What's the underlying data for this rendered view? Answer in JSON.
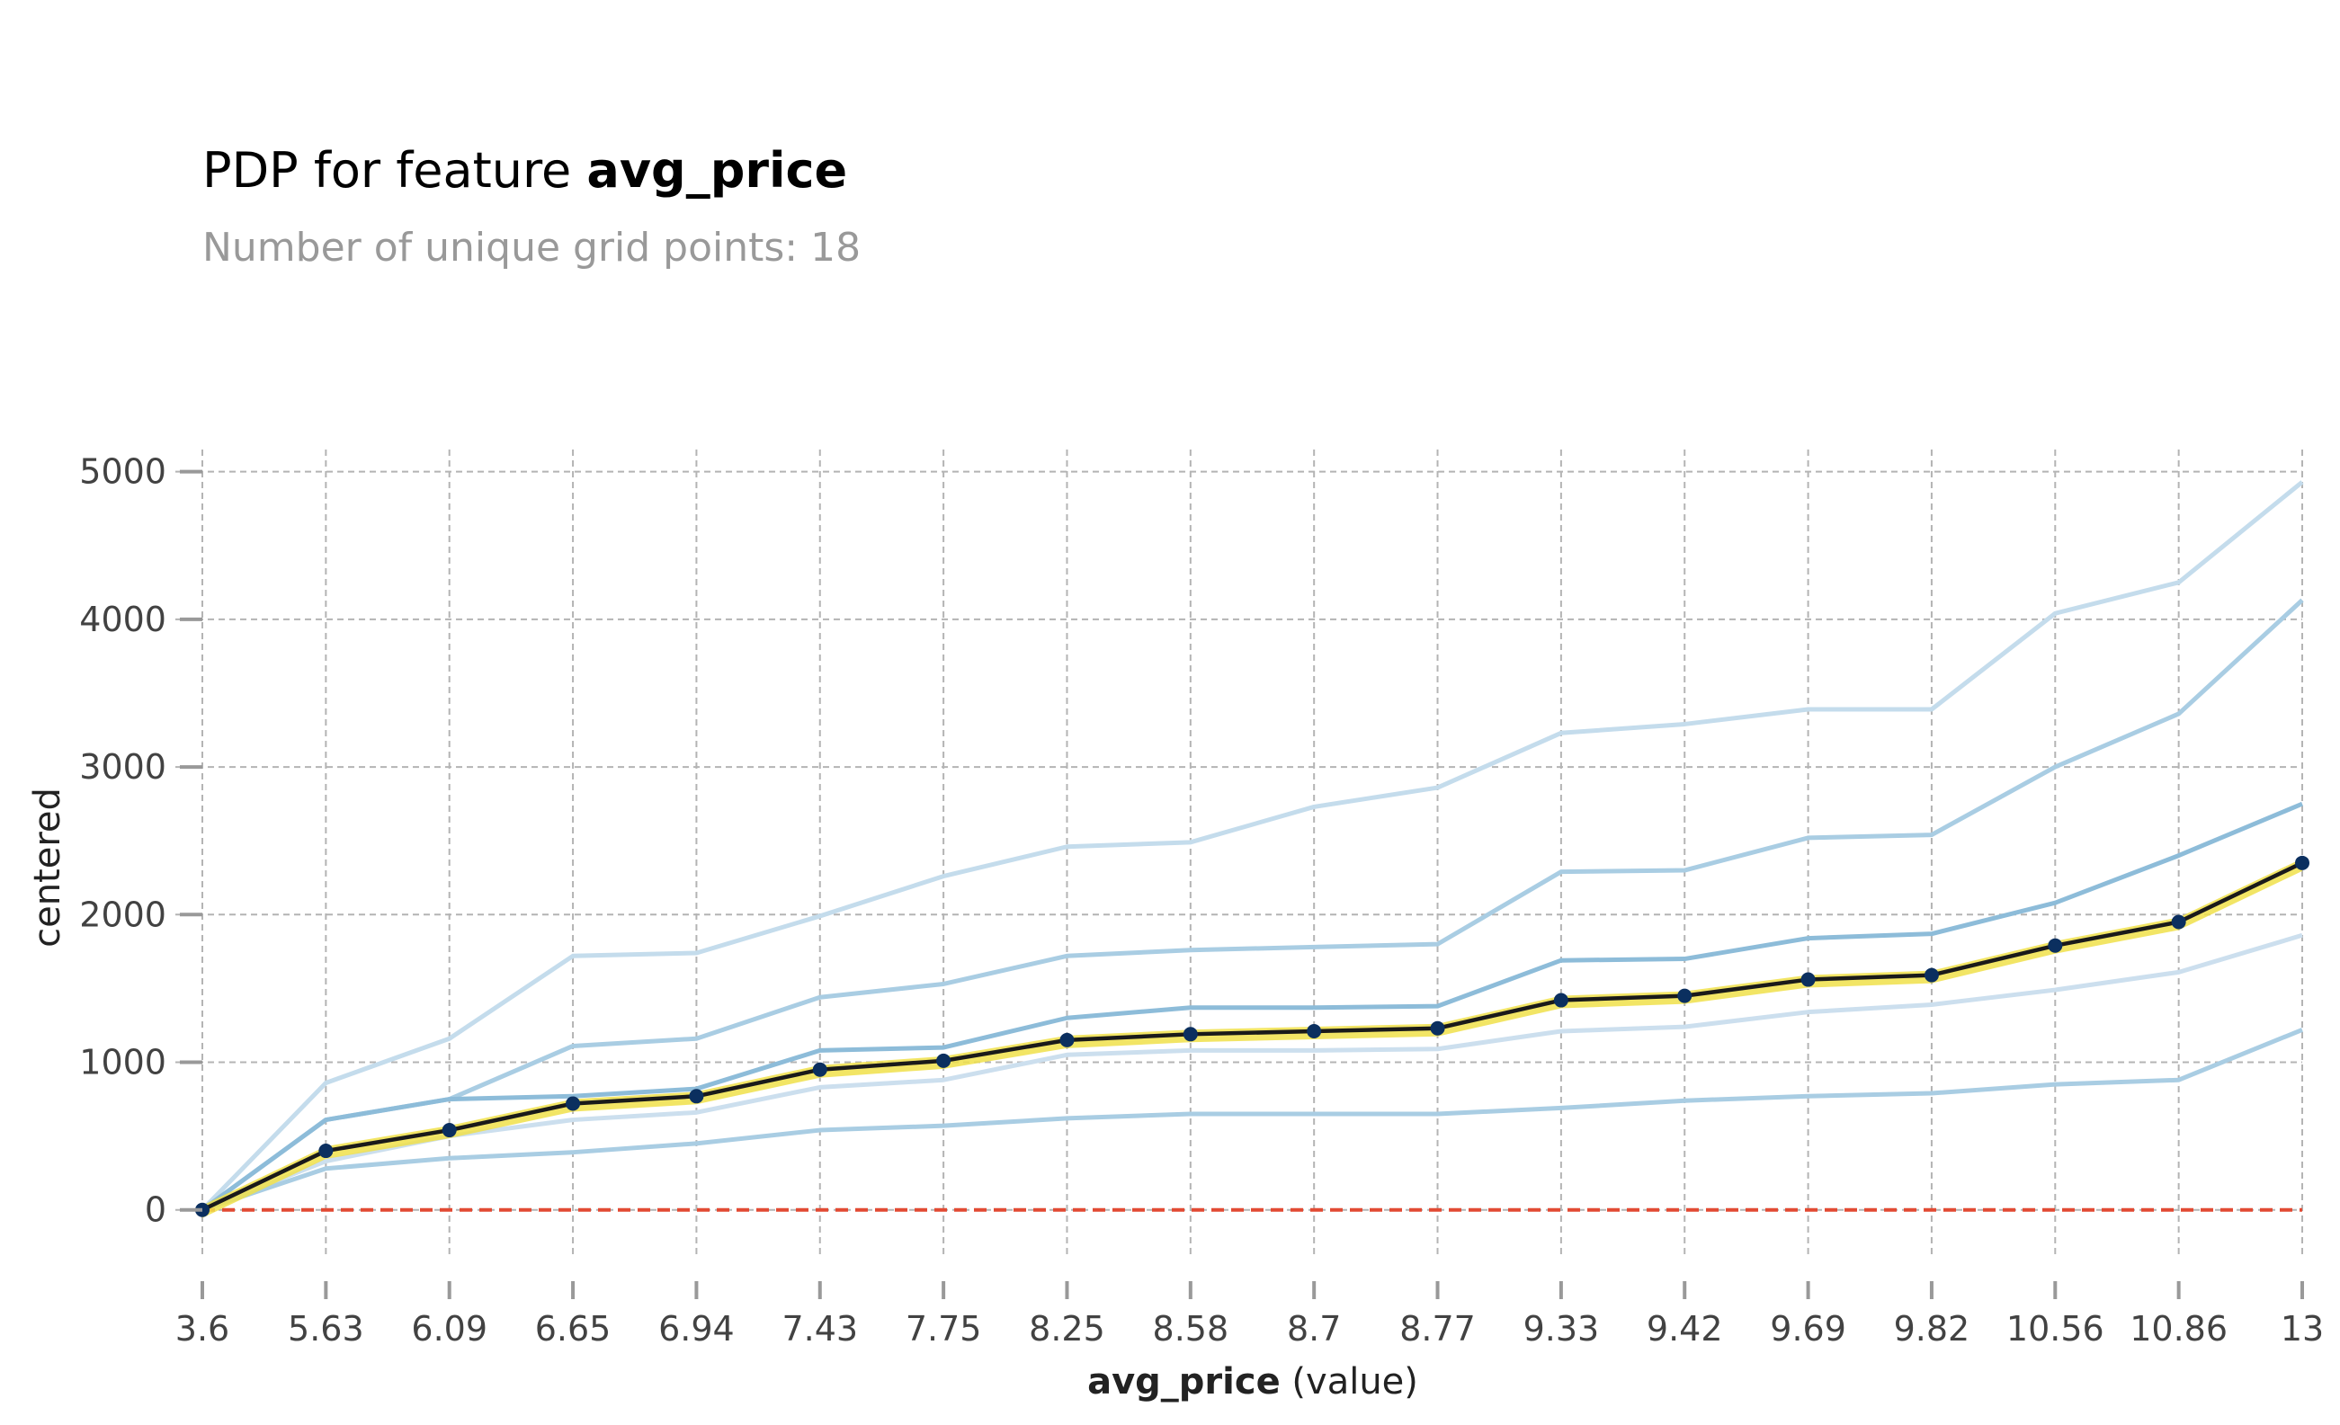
{
  "title_prefix": "PDP for feature",
  "feature_name": "avg_price",
  "subtitle": "Number of unique grid points: 18",
  "chart_data": {
    "type": "line",
    "title": "PDP for feature avg_price",
    "subtitle": "Number of unique grid points: 18",
    "xlabel_bold": "avg_price",
    "xlabel_suffix": " (value)",
    "ylabel": "centered",
    "categories": [
      "3.6",
      "5.63",
      "6.09",
      "6.65",
      "6.94",
      "7.43",
      "7.75",
      "8.25",
      "8.58",
      "8.7",
      "8.77",
      "9.33",
      "9.42",
      "9.69",
      "9.82",
      "10.56",
      "10.86",
      "13"
    ],
    "yticks": [
      0,
      1000,
      2000,
      3000,
      4000,
      5000
    ],
    "ylim": [
      -300,
      5150
    ],
    "grid": true,
    "reference_line": 0,
    "colors": {
      "pdp_line": "#1a1a1a",
      "pdp_marker": "#0b2f5f",
      "pdp_band": "#f0e14a",
      "reference": "#e24a33",
      "ice_dark": "#8dbcd9",
      "ice_mid": "#a9cde3",
      "ice_light": "#c4dcec",
      "ice_lighter": "#ccdfee"
    },
    "pdp": [
      0,
      400,
      540,
      720,
      770,
      950,
      1010,
      1150,
      1190,
      1210,
      1230,
      1420,
      1450,
      1560,
      1590,
      1790,
      1950,
      2350
    ],
    "ice": [
      {
        "values": [
          0,
          860,
          1160,
          1720,
          1740,
          1990,
          2260,
          2460,
          2490,
          2730,
          2860,
          3230,
          3290,
          3390,
          3390,
          4040,
          4250,
          4930
        ],
        "shade": "ice_light"
      },
      {
        "values": [
          0,
          610,
          750,
          1110,
          1160,
          1440,
          1530,
          1720,
          1760,
          1780,
          1800,
          2290,
          2300,
          2520,
          2540,
          3000,
          3360,
          4130
        ],
        "shade": "ice_mid"
      },
      {
        "values": [
          0,
          610,
          750,
          770,
          820,
          1080,
          1100,
          1300,
          1370,
          1370,
          1380,
          1690,
          1700,
          1840,
          1870,
          2080,
          2400,
          2750
        ],
        "shade": "ice_dark"
      },
      {
        "values": [
          0,
          330,
          500,
          610,
          660,
          830,
          880,
          1050,
          1080,
          1080,
          1090,
          1210,
          1240,
          1340,
          1390,
          1490,
          1610,
          1860
        ],
        "shade": "ice_lighter"
      },
      {
        "values": [
          0,
          280,
          350,
          390,
          450,
          540,
          570,
          620,
          650,
          650,
          650,
          690,
          740,
          770,
          790,
          850,
          880,
          1220
        ],
        "shade": "ice_mid"
      }
    ]
  }
}
